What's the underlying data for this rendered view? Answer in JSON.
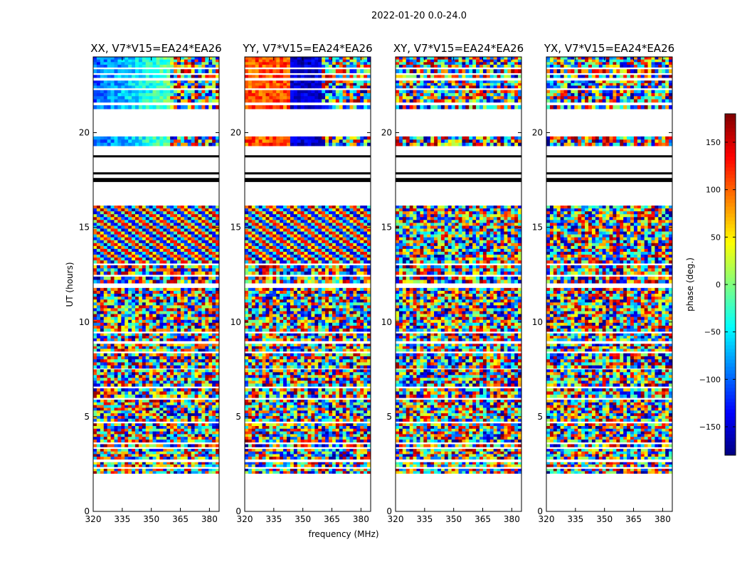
{
  "figure": {
    "suptitle": "2022-01-20 0.0-24.0"
  },
  "chart_data": {
    "type": "heatmap",
    "title": "2022-01-20 0.0-24.0",
    "xlabel": "frequency (MHz)",
    "ylabel": "UT (hours)",
    "xlim": [
      320,
      385
    ],
    "ylim": [
      0,
      24
    ],
    "x_ticks": [
      320,
      335,
      350,
      365,
      380
    ],
    "y_ticks": [
      0,
      5,
      10,
      15,
      20
    ],
    "grid": false,
    "panels": [
      {
        "title": "XX, V7*V15=EA24*EA26",
        "feature": "smooth_left"
      },
      {
        "title": "YY, V7*V15=EA24*EA26",
        "feature": "red_left"
      },
      {
        "title": "XY, V7*V15=EA24*EA26",
        "feature": "noise"
      },
      {
        "title": "YX, V7*V15=EA24*EA26",
        "feature": "noise"
      }
    ],
    "data_intervals_ut": [
      [
        2.0,
        2.25
      ],
      [
        2.35,
        2.6
      ],
      [
        2.75,
        3.3
      ],
      [
        3.4,
        3.55
      ],
      [
        3.65,
        4.65
      ],
      [
        4.75,
        5.9
      ],
      [
        6.0,
        6.5
      ],
      [
        6.6,
        7.5
      ],
      [
        7.55,
        8.35
      ],
      [
        8.45,
        8.85
      ],
      [
        9.0,
        9.4
      ],
      [
        9.5,
        11.8
      ],
      [
        12.05,
        12.4
      ],
      [
        12.5,
        13.0
      ],
      [
        13.1,
        16.15
      ],
      [
        19.3,
        19.8
      ],
      [
        21.25,
        21.45
      ],
      [
        21.6,
        22.25
      ],
      [
        22.35,
        22.75
      ],
      [
        22.9,
        23.05
      ],
      [
        23.15,
        23.35
      ],
      [
        23.45,
        24.0
      ]
    ],
    "flag_lines_ut": [
      17.45,
      17.55,
      17.85,
      18.75
    ],
    "colorbar": {
      "label": "phase (deg.)",
      "range": [
        -180,
        180
      ],
      "ticks": [
        -150,
        -100,
        -50,
        0,
        50,
        100,
        150
      ],
      "colormap": "jet",
      "colors": [
        "#00007f",
        "#0000ff",
        "#007fff",
        "#00ffff",
        "#7fff7f",
        "#ffff00",
        "#ff7f00",
        "#ff0000",
        "#7f0000"
      ]
    }
  }
}
